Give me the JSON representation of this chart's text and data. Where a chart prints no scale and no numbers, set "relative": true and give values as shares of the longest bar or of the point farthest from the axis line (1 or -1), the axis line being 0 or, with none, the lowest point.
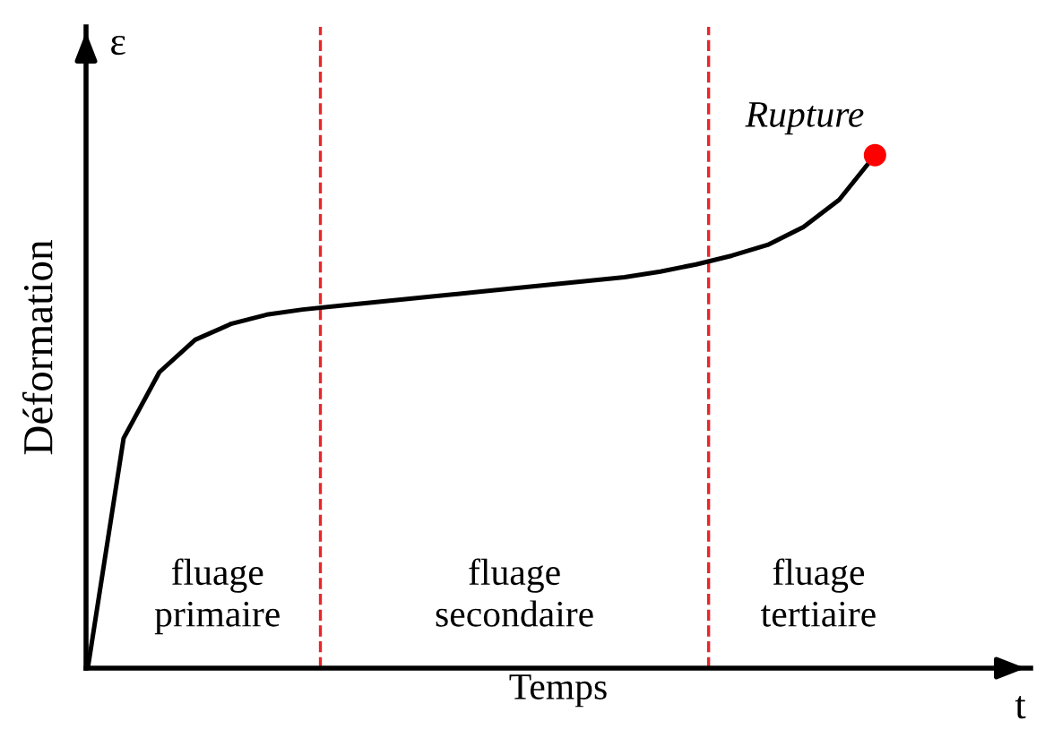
{
  "chart_data": {
    "type": "line",
    "relative": true,
    "xlabel": "Temps",
    "ylabel": "Déformation",
    "categories": [
      null,
      null,
      null,
      null,
      null,
      null,
      null,
      null,
      null,
      null,
      null,
      null,
      null,
      null,
      null,
      null,
      null,
      null,
      null,
      null,
      null,
      null,
      null
    ],
    "series": [
      {
        "color": "#000000",
        "values": [
          0,
          0.448,
          0.577,
          0.64,
          0.671,
          0.689,
          0.699,
          0.706,
          0.713,
          0.72,
          0.727,
          0.734,
          0.741,
          0.748,
          0.755,
          0.762,
          0.773,
          0.787,
          0.804,
          0.825,
          0.86,
          0.913,
          1
        ]
      }
    ],
    "annotations": [
      "ε",
      "t",
      "fluage\nprimaire",
      "fluage\nsecondaire",
      "fluage\ntertiaire",
      "Rupture"
    ]
  }
}
